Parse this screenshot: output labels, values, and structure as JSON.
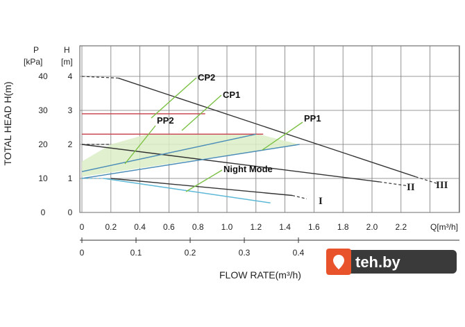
{
  "chart_data": {
    "type": "line",
    "y_axis_pressure_label": "P",
    "y_axis_pressure_unit": "[kPa]",
    "y_axis_head_label": "H",
    "y_axis_head_unit": "[m]",
    "ylabel": "TOTAL HEAD H(m)",
    "xlabel": "FLOW RATE(m³/h)",
    "x_unit_label": "Q[m³/h]",
    "xlim": [
      0,
      2.5
    ],
    "ylim": [
      0,
      5
    ],
    "head_ticks": [
      "0",
      "1",
      "2",
      "3",
      "4"
    ],
    "pressure_ticks": [
      "0",
      "10",
      "20",
      "30",
      "40"
    ],
    "x_ticks": [
      "0",
      "0.2",
      "0.4",
      "0.6",
      "0.8",
      "1.0",
      "1.2",
      "1.4",
      "1.6",
      "1.8",
      "2.0",
      "2.2"
    ],
    "secondary_x_ticks": [
      "0",
      "0.1",
      "0.2",
      "0.3",
      "0.4"
    ],
    "speed_curves": [
      {
        "name": "I",
        "points": [
          [
            0.2,
            1.0
          ],
          [
            1.45,
            0.5
          ]
        ],
        "dash": [
          [
            1.45,
            0.5
          ],
          [
            1.55,
            0.4
          ]
        ]
      },
      {
        "name": "II",
        "points": [
          [
            0.0,
            2.0
          ],
          [
            2.05,
            0.9
          ]
        ],
        "dash": [
          [
            0.0,
            2.0
          ],
          [
            0.2,
            2.0
          ]
        ]
      },
      {
        "name": "III",
        "points": [
          [
            0.25,
            3.95
          ],
          [
            2.3,
            1.05
          ]
        ],
        "dash": [
          [
            0.0,
            4.0
          ],
          [
            0.25,
            3.95
          ]
        ]
      }
    ],
    "series": [
      {
        "name": "CP2",
        "color": "#c94b55",
        "points": [
          [
            0.0,
            2.9
          ],
          [
            0.85,
            2.9
          ]
        ]
      },
      {
        "name": "CP1",
        "color": "#c94b55",
        "points": [
          [
            0.0,
            2.3
          ],
          [
            1.25,
            2.3
          ]
        ]
      },
      {
        "name": "PP2",
        "color": "#4b8db8",
        "points": [
          [
            0.0,
            1.2
          ],
          [
            1.2,
            2.3
          ]
        ]
      },
      {
        "name": "PP1",
        "color": "#4b8db8",
        "points": [
          [
            0.0,
            1.0
          ],
          [
            1.5,
            2.0
          ]
        ]
      },
      {
        "name": "Night Mode",
        "color": "#5bb8d6",
        "points": [
          [
            0.15,
            1.0
          ],
          [
            1.3,
            0.28
          ]
        ]
      }
    ],
    "series_labels": [
      "CP2",
      "CP1",
      "PP2",
      "PP1",
      "Night Mode"
    ],
    "roman_labels": [
      "I",
      "II",
      "III"
    ],
    "shaded_region_color": "#dceec7",
    "grid": true
  },
  "watermark": {
    "text": "teh.by"
  }
}
